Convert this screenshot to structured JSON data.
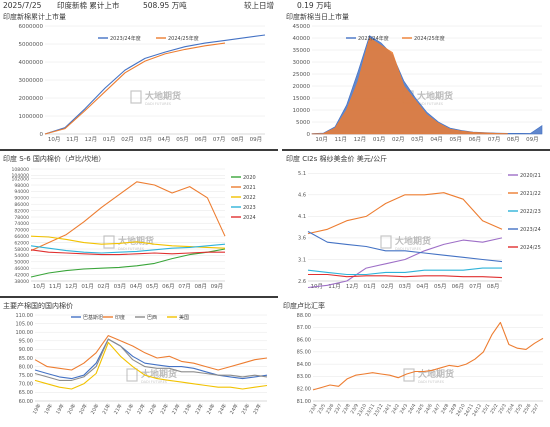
{
  "header": {
    "date": "2025/7/25",
    "desc": "印度新棉 累计上市",
    "value": "508.95 万吨",
    "compare": "较上日增",
    "change": "0.19 万吨"
  },
  "watermark": {
    "cn": "大地期货",
    "en": "DADI FUTURES"
  },
  "colors": {
    "blue": "#4472c4",
    "orange": "#ed7d31",
    "green": "#3aa53a",
    "purple": "#9e6fc7",
    "red": "#e03030",
    "yellow": "#f2c200",
    "cyan": "#2fb3d9",
    "gray": "#8c8c8c"
  },
  "charts": [
    {
      "id": "c1",
      "type": "line",
      "title": "印度新棉累计上市量",
      "x_ticks": [
        "10月",
        "11月",
        "12月",
        "01月",
        "02月",
        "03月",
        "04月",
        "05月",
        "06月",
        "07月",
        "08月",
        "09月"
      ],
      "ylim": [
        0,
        6000000
      ],
      "y_ticks": [
        "0",
        "1000000",
        "2000000",
        "3000000",
        "4000000",
        "5000000",
        "6000000"
      ],
      "legend": [
        "2023/24年度",
        "2024/25年度"
      ],
      "series": [
        {
          "name": "2023/24年度",
          "color": "blue",
          "values": [
            0,
            350000,
            1400000,
            2550000,
            3550000,
            4200000,
            4550000,
            4850000,
            5050000,
            5200000,
            5350000,
            5500000
          ]
        },
        {
          "name": "2024/25年度",
          "color": "orange",
          "values": [
            0,
            300000,
            1300000,
            2350000,
            3400000,
            4050000,
            4450000,
            4700000,
            4900000,
            5050000
          ]
        }
      ]
    },
    {
      "id": "c2",
      "type": "area",
      "title": "印度新棉当日上市量",
      "x_ticks": [
        "10月",
        "11月",
        "12月",
        "01月",
        "02月",
        "03月",
        "04月",
        "05月",
        "06月",
        "07月",
        "08月",
        "09月"
      ],
      "ylim": [
        0,
        45000
      ],
      "y_ticks": [
        "0",
        "5000",
        "10000",
        "15000",
        "20000",
        "25000",
        "30000",
        "35000",
        "40000",
        "45000"
      ],
      "legend": [
        "2023/24年度",
        "2024/25年度"
      ],
      "series": [
        {
          "name": "2023/24年度",
          "color": "blue",
          "values": [
            200,
            400,
            3000,
            12000,
            26000,
            41000,
            38000,
            33000,
            22000,
            15000,
            9000,
            5000,
            2500,
            1500,
            800,
            600,
            400,
            300,
            300,
            250,
            3500
          ]
        },
        {
          "name": "2024/25年度",
          "color": "orange",
          "values": [
            100,
            200,
            2500,
            10000,
            22000,
            40000,
            37000,
            34000,
            20000,
            14000,
            8000,
            4500,
            2000,
            1200,
            700,
            500,
            300,
            200
          ]
        }
      ]
    },
    {
      "id": "c3",
      "type": "line",
      "title": "印度 S-6 国内棉价（卢比/坎地）",
      "x_ticks": [
        "10月",
        "11月",
        "12月",
        "01月",
        "02月",
        "03月",
        "04月",
        "05月",
        "06月",
        "07月",
        "08月",
        "09月"
      ],
      "ylim": [
        38000,
        108000
      ],
      "y_ticks": [
        "38000",
        "42000",
        "46000",
        "50000",
        "54000",
        "58000",
        "62000",
        "66000",
        "70000",
        "74000",
        "78000",
        "82000",
        "86000",
        "90000",
        "94000",
        "98000",
        "102000",
        "104000",
        "108000"
      ],
      "legend": [
        "2020",
        "2021",
        "2022",
        "2023",
        "2024"
      ],
      "series": [
        {
          "name": "2020",
          "color": "green",
          "values": [
            40500,
            43000,
            44500,
            45500,
            46000,
            46500,
            47500,
            49000,
            52000,
            54500,
            56000,
            58000
          ]
        },
        {
          "name": "2021",
          "color": "orange",
          "values": [
            57000,
            62000,
            67000,
            75000,
            84000,
            92000,
            100000,
            98000,
            93000,
            97000,
            90000,
            66000
          ]
        },
        {
          "name": "2022",
          "color": "yellow",
          "values": [
            66000,
            65500,
            64000,
            62000,
            61000,
            61500,
            62500,
            61000,
            60000,
            59500,
            59000,
            58500
          ]
        },
        {
          "name": "2023",
          "color": "cyan",
          "values": [
            60000,
            58500,
            57000,
            56000,
            55500,
            56000,
            56500,
            57500,
            58500,
            59000,
            60000,
            61000
          ]
        },
        {
          "name": "2024",
          "color": "red",
          "values": [
            57500,
            56000,
            55500,
            55000,
            54500,
            54500,
            55000,
            55500,
            55000,
            55500,
            56000,
            56000
          ]
        }
      ]
    },
    {
      "id": "c4",
      "type": "line",
      "title": "印度 CI2s 棉纱美金价 美元/公斤",
      "x_ticks": [
        "10月",
        "11月",
        "12月",
        "01月",
        "02月",
        "03月",
        "04月",
        "05月",
        "06月",
        "07月",
        "08月"
      ],
      "ylim": [
        2.6,
        5.2
      ],
      "y_ticks": [
        "2.6",
        "3.1",
        "3.6",
        "4.1",
        "4.6",
        "5.1"
      ],
      "legend": [
        "2020/21",
        "2021/22",
        "2022/23",
        "2023/24",
        "2024/25"
      ],
      "series": [
        {
          "name": "2020/21",
          "color": "purple",
          "values": [
            2.45,
            2.5,
            2.6,
            2.9,
            3.0,
            3.1,
            3.3,
            3.45,
            3.55,
            3.5,
            3.6
          ]
        },
        {
          "name": "2021/22",
          "color": "orange",
          "values": [
            3.7,
            3.8,
            4.0,
            4.1,
            4.4,
            4.6,
            4.6,
            4.65,
            4.5,
            4.0,
            3.8
          ]
        },
        {
          "name": "2022/23",
          "color": "cyan",
          "values": [
            2.85,
            2.8,
            2.75,
            2.75,
            2.8,
            2.8,
            2.85,
            2.85,
            2.85,
            2.9,
            2.9
          ]
        },
        {
          "name": "2023/24",
          "color": "blue",
          "values": [
            3.75,
            3.5,
            3.45,
            3.4,
            3.3,
            3.3,
            3.25,
            3.2,
            3.15,
            3.1,
            3.05
          ]
        },
        {
          "name": "2024/25",
          "color": "red",
          "values": [
            2.75,
            2.75,
            2.7,
            2.72,
            2.72,
            2.7,
            2.72,
            2.72,
            2.7,
            2.7,
            2.68
          ]
        }
      ]
    },
    {
      "id": "c5",
      "type": "line",
      "title": "主要产棉国的国内棉价",
      "x_ticks": [
        "19年",
        "19年",
        "19年",
        "20年",
        "20年",
        "20年",
        "21年",
        "21年",
        "21年",
        "22年",
        "22年",
        "22年",
        "23年",
        "23年",
        "23年",
        "24年",
        "24年",
        "24年",
        "25年",
        "25年"
      ],
      "ylim": [
        60,
        110
      ],
      "y_ticks": [
        "60.00",
        "65.00",
        "70.00",
        "75.00",
        "80.00",
        "85.00",
        "90.00",
        "95.00",
        "100.00",
        "105.00",
        "110.00"
      ],
      "legend": [
        "巴基斯坦",
        "印度",
        "巴西",
        "美国"
      ],
      "series": [
        {
          "name": "巴基斯坦",
          "color": "blue",
          "values": [
            78,
            76,
            74,
            73,
            75,
            82,
            96,
            92,
            86,
            82,
            81,
            80,
            80,
            79,
            77,
            75,
            74,
            73,
            74,
            75
          ]
        },
        {
          "name": "印度",
          "color": "orange",
          "values": [
            84,
            80,
            79,
            78,
            82,
            88,
            98,
            95,
            92,
            88,
            85,
            86,
            83,
            82,
            80,
            78,
            80,
            82,
            84,
            85
          ]
        },
        {
          "name": "巴西",
          "color": "gray",
          "values": [
            76,
            74,
            72,
            72,
            74,
            80,
            96,
            92,
            84,
            80,
            79,
            79,
            77,
            77,
            76,
            75,
            75,
            74,
            75,
            74
          ]
        },
        {
          "name": "美国",
          "color": "yellow",
          "values": [
            72,
            70,
            68,
            67,
            70,
            76,
            94,
            86,
            80,
            75,
            73,
            72,
            71,
            70,
            69,
            68,
            68,
            67,
            68,
            69
          ]
        }
      ]
    },
    {
      "id": "c6",
      "type": "line",
      "title": "印度卢比汇率",
      "x_ticks": [
        "23/4",
        "23/5",
        "23/6",
        "23/7",
        "23/8",
        "23/9",
        "23/10",
        "23/11",
        "23/12",
        "24/1",
        "24/2",
        "24/3",
        "24/4",
        "24/5",
        "24/6",
        "24/7",
        "24/8",
        "24/9",
        "24/10",
        "24/11",
        "24/12",
        "25/1",
        "25/2",
        "25/3",
        "25/4",
        "25/5",
        "25/6",
        "25/7"
      ],
      "ylim": [
        81,
        88
      ],
      "y_ticks": [
        "81.00",
        "82.00",
        "83.00",
        "84.00",
        "85.00",
        "86.00",
        "87.00",
        "88.00"
      ],
      "series": [
        {
          "name": "印度卢比汇率",
          "color": "orange",
          "values": [
            81.9,
            82.1,
            82.3,
            82.2,
            82.8,
            83.1,
            83.2,
            83.3,
            83.2,
            83.1,
            82.9,
            83.2,
            83.4,
            83.4,
            83.5,
            83.7,
            83.9,
            83.8,
            84.0,
            84.4,
            85.0,
            86.4,
            87.4,
            85.6,
            85.3,
            85.2,
            85.7,
            86.1
          ]
        }
      ]
    }
  ]
}
